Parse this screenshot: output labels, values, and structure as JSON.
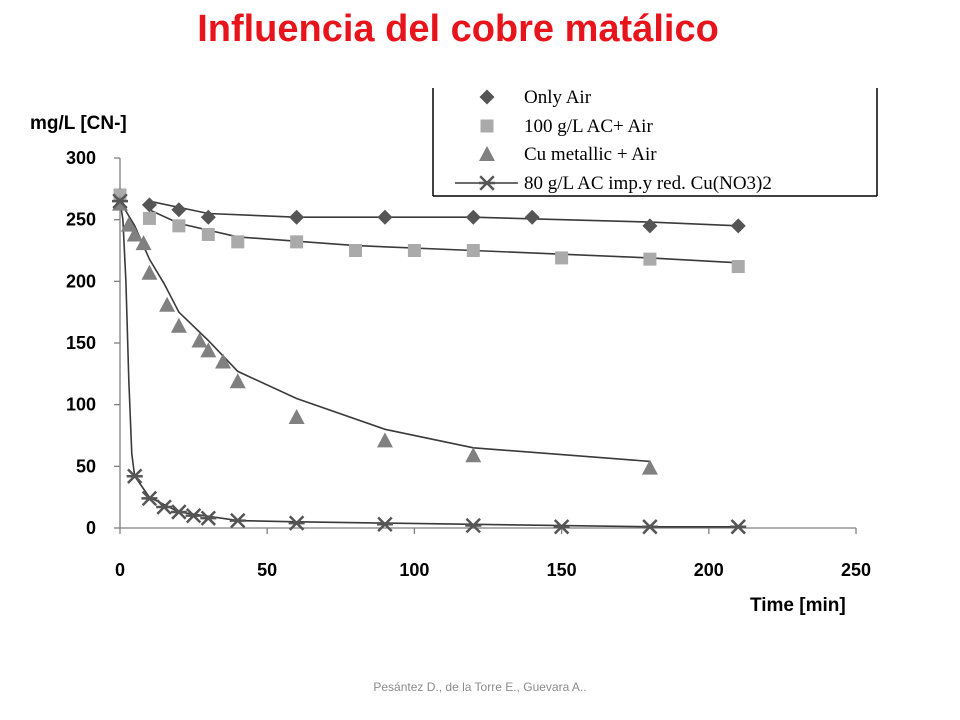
{
  "slide": {
    "title": "Influencia del cobre matálico",
    "footer": "Pesántez D., de la Torre E., Guevara A.."
  },
  "chart_data": {
    "type": "scatter",
    "title": "",
    "ylabel": "mg/L [CN-]",
    "xlabel": "Time [min]",
    "xlim": [
      0,
      250
    ],
    "ylim": [
      0,
      300
    ],
    "x_ticks": [
      0,
      50,
      100,
      150,
      200,
      250
    ],
    "y_ticks": [
      0,
      50,
      100,
      150,
      200,
      250,
      300
    ],
    "grid": false,
    "legend_position": "top-right",
    "series": [
      {
        "name": "Only  Air",
        "marker": "diamond",
        "color": "#555555",
        "points": [
          [
            0,
            270
          ],
          [
            10,
            262
          ],
          [
            20,
            258
          ],
          [
            30,
            252
          ],
          [
            60,
            252
          ],
          [
            90,
            252
          ],
          [
            120,
            252
          ],
          [
            140,
            252
          ],
          [
            180,
            245
          ],
          [
            210,
            245
          ]
        ],
        "trend": [
          [
            10,
            265
          ],
          [
            30,
            255
          ],
          [
            60,
            252
          ],
          [
            120,
            252
          ],
          [
            180,
            248
          ],
          [
            210,
            245
          ]
        ]
      },
      {
        "name": "100 g/L AC+ Air",
        "marker": "square",
        "color": "#aaaaaa",
        "points": [
          [
            0,
            270
          ],
          [
            10,
            251
          ],
          [
            20,
            245
          ],
          [
            30,
            238
          ],
          [
            40,
            232
          ],
          [
            60,
            232
          ],
          [
            80,
            225
          ],
          [
            100,
            225
          ],
          [
            120,
            225
          ],
          [
            150,
            219
          ],
          [
            180,
            218
          ],
          [
            210,
            212
          ]
        ],
        "trend": [
          [
            10,
            258
          ],
          [
            20,
            247
          ],
          [
            40,
            236
          ],
          [
            80,
            229
          ],
          [
            120,
            225
          ],
          [
            180,
            219
          ],
          [
            210,
            215
          ]
        ]
      },
      {
        "name": "Cu metallic + Air",
        "marker": "triangle",
        "color": "#808080",
        "points": [
          [
            0,
            263
          ],
          [
            3,
            246
          ],
          [
            5,
            238
          ],
          [
            8,
            231
          ],
          [
            10,
            207
          ],
          [
            16,
            181
          ],
          [
            20,
            164
          ],
          [
            27,
            152
          ],
          [
            30,
            144
          ],
          [
            35,
            135
          ],
          [
            40,
            119
          ],
          [
            60,
            90
          ],
          [
            90,
            71
          ],
          [
            120,
            59
          ],
          [
            180,
            49
          ]
        ],
        "trend": [
          [
            0,
            265
          ],
          [
            5,
            245
          ],
          [
            10,
            218
          ],
          [
            15,
            198
          ],
          [
            20,
            175
          ],
          [
            30,
            152
          ],
          [
            40,
            127
          ],
          [
            60,
            105
          ],
          [
            90,
            80
          ],
          [
            120,
            65
          ],
          [
            180,
            54
          ]
        ]
      },
      {
        "name": "80 g/L AC imp.y red. Cu(NO3)2",
        "marker": "asterisk",
        "color": "#555555",
        "points": [
          [
            0,
            265
          ],
          [
            5,
            42
          ],
          [
            10,
            24
          ],
          [
            15,
            17
          ],
          [
            20,
            13
          ],
          [
            25,
            10
          ],
          [
            30,
            8
          ],
          [
            40,
            6
          ],
          [
            60,
            4
          ],
          [
            90,
            3
          ],
          [
            120,
            2
          ],
          [
            150,
            1
          ],
          [
            180,
            1
          ],
          [
            210,
            1
          ]
        ],
        "trend": [
          [
            0,
            265
          ],
          [
            1,
            250
          ],
          [
            2,
            200
          ],
          [
            3,
            120
          ],
          [
            4,
            60
          ],
          [
            5,
            42
          ],
          [
            10,
            25
          ],
          [
            20,
            13
          ],
          [
            40,
            6
          ],
          [
            60,
            5
          ],
          [
            90,
            4
          ],
          [
            120,
            3
          ],
          [
            180,
            1
          ],
          [
            210,
            1
          ]
        ]
      }
    ]
  }
}
